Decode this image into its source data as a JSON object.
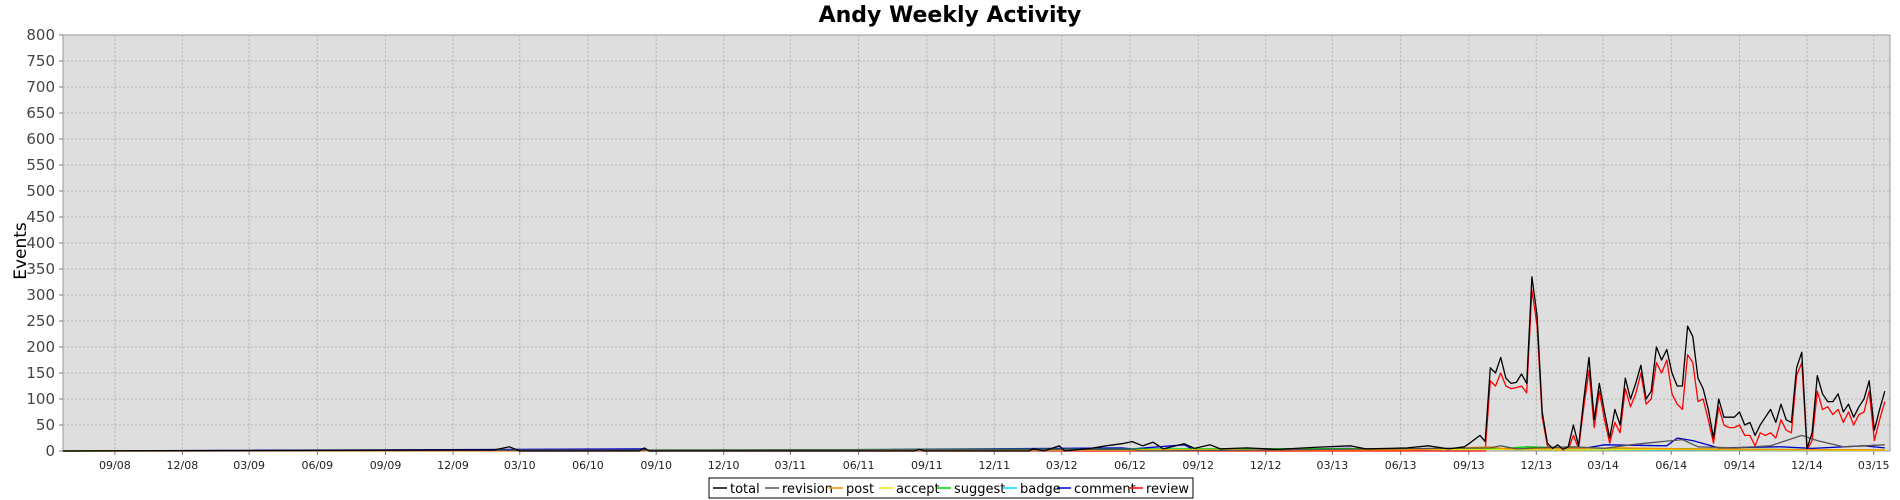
{
  "chart_data": {
    "type": "line",
    "title": "Andy Weekly Activity",
    "xlabel": "",
    "ylabel": "Events",
    "ylim": [
      0,
      800
    ],
    "yticks": [
      0,
      50,
      100,
      150,
      200,
      250,
      300,
      350,
      400,
      450,
      500,
      550,
      600,
      650,
      700,
      750,
      800
    ],
    "xticks": [
      "09/08",
      "12/08",
      "03/09",
      "06/09",
      "09/09",
      "12/09",
      "03/10",
      "06/10",
      "09/10",
      "12/10",
      "03/11",
      "06/11",
      "09/11",
      "12/11",
      "03/12",
      "06/12",
      "09/12",
      "12/12",
      "03/13",
      "06/13",
      "09/13",
      "12/13",
      "03/14",
      "06/14",
      "09/14",
      "12/14",
      "03/15"
    ],
    "xlim": [
      "2008-06-23",
      "2015-03-23"
    ],
    "grid": true,
    "legend_position": "bottom-center",
    "series": [
      {
        "name": "total",
        "color": "#000000",
        "points": [
          [
            "2008-06-23",
            0
          ],
          [
            "2009-11-30",
            2
          ],
          [
            "2010-01-25",
            2
          ],
          [
            "2010-02-15",
            8
          ],
          [
            "2010-03-01",
            0
          ],
          [
            "2010-08-09",
            0
          ],
          [
            "2010-08-16",
            6
          ],
          [
            "2010-08-23",
            0
          ],
          [
            "2011-08-15",
            0
          ],
          [
            "2011-08-22",
            3
          ],
          [
            "2011-08-29",
            0
          ],
          [
            "2012-01-16",
            0
          ],
          [
            "2012-01-23",
            4
          ],
          [
            "2012-02-06",
            0
          ],
          [
            "2012-02-27",
            10
          ],
          [
            "2012-03-05",
            0
          ],
          [
            "2012-04-09",
            5
          ],
          [
            "2012-04-30",
            10
          ],
          [
            "2012-05-21",
            14
          ],
          [
            "2012-06-04",
            18
          ],
          [
            "2012-06-18",
            10
          ],
          [
            "2012-07-02",
            17
          ],
          [
            "2012-07-16",
            4
          ],
          [
            "2012-08-13",
            14
          ],
          [
            "2012-08-27",
            5
          ],
          [
            "2012-09-17",
            12
          ],
          [
            "2012-10-01",
            4
          ],
          [
            "2012-11-05",
            6
          ],
          [
            "2012-12-17",
            3
          ],
          [
            "2013-02-04",
            7
          ],
          [
            "2013-03-25",
            10
          ],
          [
            "2013-04-15",
            4
          ],
          [
            "2013-06-10",
            6
          ],
          [
            "2013-07-08",
            10
          ],
          [
            "2013-08-05",
            4
          ],
          [
            "2013-08-26",
            8
          ],
          [
            "2013-09-02",
            15
          ],
          [
            "2013-09-16",
            30
          ],
          [
            "2013-09-23",
            18
          ],
          [
            "2013-09-30",
            160
          ],
          [
            "2013-10-07",
            150
          ],
          [
            "2013-10-14",
            180
          ],
          [
            "2013-10-21",
            140
          ],
          [
            "2013-10-28",
            130
          ],
          [
            "2013-11-04",
            132
          ],
          [
            "2013-11-11",
            148
          ],
          [
            "2013-11-18",
            130
          ],
          [
            "2013-11-25",
            335
          ],
          [
            "2013-12-02",
            260
          ],
          [
            "2013-12-09",
            75
          ],
          [
            "2013-12-16",
            15
          ],
          [
            "2013-12-23",
            5
          ],
          [
            "2013-12-30",
            12
          ],
          [
            "2014-01-06",
            3
          ],
          [
            "2014-01-13",
            8
          ],
          [
            "2014-01-20",
            50
          ],
          [
            "2014-01-27",
            10
          ],
          [
            "2014-02-03",
            100
          ],
          [
            "2014-02-10",
            180
          ],
          [
            "2014-02-17",
            60
          ],
          [
            "2014-02-24",
            130
          ],
          [
            "2014-03-03",
            75
          ],
          [
            "2014-03-10",
            25
          ],
          [
            "2014-03-17",
            80
          ],
          [
            "2014-03-24",
            50
          ],
          [
            "2014-03-31",
            140
          ],
          [
            "2014-04-07",
            100
          ],
          [
            "2014-04-14",
            130
          ],
          [
            "2014-04-21",
            165
          ],
          [
            "2014-04-28",
            100
          ],
          [
            "2014-05-05",
            115
          ],
          [
            "2014-05-12",
            200
          ],
          [
            "2014-05-19",
            175
          ],
          [
            "2014-05-26",
            195
          ],
          [
            "2014-06-02",
            150
          ],
          [
            "2014-06-09",
            125
          ],
          [
            "2014-06-16",
            125
          ],
          [
            "2014-06-23",
            240
          ],
          [
            "2014-06-30",
            220
          ],
          [
            "2014-07-07",
            140
          ],
          [
            "2014-07-14",
            120
          ],
          [
            "2014-07-21",
            80
          ],
          [
            "2014-07-28",
            25
          ],
          [
            "2014-08-04",
            100
          ],
          [
            "2014-08-11",
            65
          ],
          [
            "2014-08-18",
            65
          ],
          [
            "2014-08-25",
            65
          ],
          [
            "2014-09-01",
            75
          ],
          [
            "2014-09-08",
            50
          ],
          [
            "2014-09-15",
            55
          ],
          [
            "2014-09-22",
            30
          ],
          [
            "2014-09-29",
            50
          ],
          [
            "2014-10-06",
            65
          ],
          [
            "2014-10-13",
            80
          ],
          [
            "2014-10-20",
            55
          ],
          [
            "2014-10-27",
            90
          ],
          [
            "2014-11-03",
            60
          ],
          [
            "2014-11-10",
            55
          ],
          [
            "2014-11-17",
            160
          ],
          [
            "2014-11-24",
            190
          ],
          [
            "2014-12-01",
            5
          ],
          [
            "2014-12-08",
            35
          ],
          [
            "2014-12-15",
            145
          ],
          [
            "2014-12-22",
            110
          ],
          [
            "2014-12-29",
            95
          ],
          [
            "2015-01-05",
            95
          ],
          [
            "2015-01-12",
            110
          ],
          [
            "2015-01-19",
            75
          ],
          [
            "2015-01-26",
            90
          ],
          [
            "2015-02-02",
            65
          ],
          [
            "2015-02-09",
            85
          ],
          [
            "2015-02-16",
            100
          ],
          [
            "2015-02-23",
            135
          ],
          [
            "2015-03-02",
            40
          ],
          [
            "2015-03-09",
            80
          ],
          [
            "2015-03-16",
            115
          ]
        ]
      },
      {
        "name": "revision",
        "color": "#555555",
        "points": [
          [
            "2008-06-23",
            0
          ],
          [
            "2012-06-04",
            3
          ],
          [
            "2012-06-18",
            0
          ],
          [
            "2013-09-30",
            6
          ],
          [
            "2013-10-14",
            10
          ],
          [
            "2013-11-04",
            4
          ],
          [
            "2013-12-02",
            6
          ],
          [
            "2014-01-20",
            8
          ],
          [
            "2014-03-03",
            5
          ],
          [
            "2014-04-07",
            12
          ],
          [
            "2014-05-19",
            18
          ],
          [
            "2014-06-16",
            22
          ],
          [
            "2014-07-07",
            8
          ],
          [
            "2014-08-25",
            6
          ],
          [
            "2014-10-13",
            10
          ],
          [
            "2014-11-24",
            30
          ],
          [
            "2014-12-15",
            20
          ],
          [
            "2015-01-19",
            8
          ],
          [
            "2015-03-16",
            12
          ]
        ]
      },
      {
        "name": "post",
        "color": "#ff8c00",
        "points": [
          [
            "2008-06-23",
            0
          ],
          [
            "2013-06-10",
            2
          ],
          [
            "2013-09-30",
            8
          ],
          [
            "2013-10-21",
            4
          ],
          [
            "2013-12-30",
            5
          ],
          [
            "2014-03-31",
            6
          ],
          [
            "2014-06-16",
            4
          ],
          [
            "2014-09-22",
            3
          ],
          [
            "2015-03-16",
            2
          ]
        ]
      },
      {
        "name": "accept",
        "color": "#e6e600",
        "points": [
          [
            "2008-06-23",
            0
          ],
          [
            "2013-10-07",
            3
          ],
          [
            "2014-01-06",
            2
          ],
          [
            "2014-05-12",
            3
          ],
          [
            "2015-03-16",
            1
          ]
        ]
      },
      {
        "name": "suggest",
        "color": "#00cc00",
        "points": [
          [
            "2008-06-23",
            0
          ],
          [
            "2013-10-21",
            5
          ],
          [
            "2013-11-18",
            8
          ],
          [
            "2014-01-13",
            6
          ],
          [
            "2014-04-21",
            5
          ],
          [
            "2014-07-21",
            4
          ],
          [
            "2014-10-20",
            3
          ],
          [
            "2015-03-16",
            2
          ]
        ]
      },
      {
        "name": "badge",
        "color": "#00d8ff",
        "points": [
          [
            "2008-06-23",
            0
          ],
          [
            "2012-01-23",
            1
          ],
          [
            "2013-10-07",
            3
          ],
          [
            "2014-02-10",
            2
          ],
          [
            "2014-08-11",
            2
          ],
          [
            "2015-03-16",
            1
          ]
        ]
      },
      {
        "name": "comment",
        "color": "#0000cc",
        "points": [
          [
            "2008-06-23",
            0
          ],
          [
            "2010-08-16",
            4
          ],
          [
            "2010-08-23",
            0
          ],
          [
            "2012-05-21",
            6
          ],
          [
            "2012-06-04",
            4
          ],
          [
            "2012-08-13",
            12
          ],
          [
            "2012-08-27",
            2
          ],
          [
            "2013-03-25",
            5
          ],
          [
            "2013-04-15",
            2
          ],
          [
            "2014-02-03",
            5
          ],
          [
            "2014-03-03",
            12
          ],
          [
            "2014-05-26",
            10
          ],
          [
            "2014-06-09",
            25
          ],
          [
            "2014-06-30",
            20
          ],
          [
            "2014-08-04",
            6
          ],
          [
            "2014-10-27",
            8
          ],
          [
            "2014-12-08",
            5
          ],
          [
            "2015-02-16",
            10
          ],
          [
            "2015-03-16",
            6
          ]
        ]
      },
      {
        "name": "review",
        "color": "#ff0000",
        "points": [
          [
            "2008-06-23",
            0
          ],
          [
            "2013-09-23",
            0
          ],
          [
            "2013-09-30",
            135
          ],
          [
            "2013-10-07",
            125
          ],
          [
            "2013-10-14",
            150
          ],
          [
            "2013-10-21",
            125
          ],
          [
            "2013-10-28",
            120
          ],
          [
            "2013-11-04",
            122
          ],
          [
            "2013-11-11",
            125
          ],
          [
            "2013-11-18",
            112
          ],
          [
            "2013-11-25",
            310
          ],
          [
            "2013-12-02",
            240
          ],
          [
            "2013-12-09",
            65
          ],
          [
            "2013-12-16",
            10
          ],
          [
            "2013-12-23",
            2
          ],
          [
            "2013-12-30",
            5
          ],
          [
            "2014-01-06",
            1
          ],
          [
            "2014-01-13",
            3
          ],
          [
            "2014-01-20",
            30
          ],
          [
            "2014-01-27",
            5
          ],
          [
            "2014-02-03",
            85
          ],
          [
            "2014-02-10",
            155
          ],
          [
            "2014-02-17",
            45
          ],
          [
            "2014-02-24",
            115
          ],
          [
            "2014-03-03",
            60
          ],
          [
            "2014-03-10",
            15
          ],
          [
            "2014-03-17",
            55
          ],
          [
            "2014-03-24",
            35
          ],
          [
            "2014-03-31",
            120
          ],
          [
            "2014-04-07",
            85
          ],
          [
            "2014-04-14",
            110
          ],
          [
            "2014-04-21",
            150
          ],
          [
            "2014-04-28",
            90
          ],
          [
            "2014-05-05",
            100
          ],
          [
            "2014-05-12",
            170
          ],
          [
            "2014-05-19",
            150
          ],
          [
            "2014-05-26",
            175
          ],
          [
            "2014-06-02",
            110
          ],
          [
            "2014-06-09",
            90
          ],
          [
            "2014-06-16",
            80
          ],
          [
            "2014-06-23",
            185
          ],
          [
            "2014-06-30",
            170
          ],
          [
            "2014-07-07",
            95
          ],
          [
            "2014-07-14",
            100
          ],
          [
            "2014-07-21",
            60
          ],
          [
            "2014-07-28",
            15
          ],
          [
            "2014-08-04",
            85
          ],
          [
            "2014-08-11",
            50
          ],
          [
            "2014-08-18",
            45
          ],
          [
            "2014-08-25",
            45
          ],
          [
            "2014-09-01",
            50
          ],
          [
            "2014-09-08",
            30
          ],
          [
            "2014-09-15",
            30
          ],
          [
            "2014-09-22",
            10
          ],
          [
            "2014-09-29",
            35
          ],
          [
            "2014-10-06",
            30
          ],
          [
            "2014-10-13",
            35
          ],
          [
            "2014-10-20",
            25
          ],
          [
            "2014-10-27",
            60
          ],
          [
            "2014-11-03",
            40
          ],
          [
            "2014-11-10",
            35
          ],
          [
            "2014-11-17",
            145
          ],
          [
            "2014-11-24",
            170
          ],
          [
            "2014-12-01",
            2
          ],
          [
            "2014-12-08",
            20
          ],
          [
            "2014-12-15",
            115
          ],
          [
            "2014-12-22",
            80
          ],
          [
            "2014-12-29",
            85
          ],
          [
            "2015-01-05",
            70
          ],
          [
            "2015-01-12",
            80
          ],
          [
            "2015-01-19",
            55
          ],
          [
            "2015-01-26",
            75
          ],
          [
            "2015-02-02",
            50
          ],
          [
            "2015-02-09",
            70
          ],
          [
            "2015-02-16",
            75
          ],
          [
            "2015-02-23",
            115
          ],
          [
            "2015-03-02",
            20
          ],
          [
            "2015-03-09",
            60
          ],
          [
            "2015-03-16",
            95
          ]
        ]
      }
    ]
  }
}
